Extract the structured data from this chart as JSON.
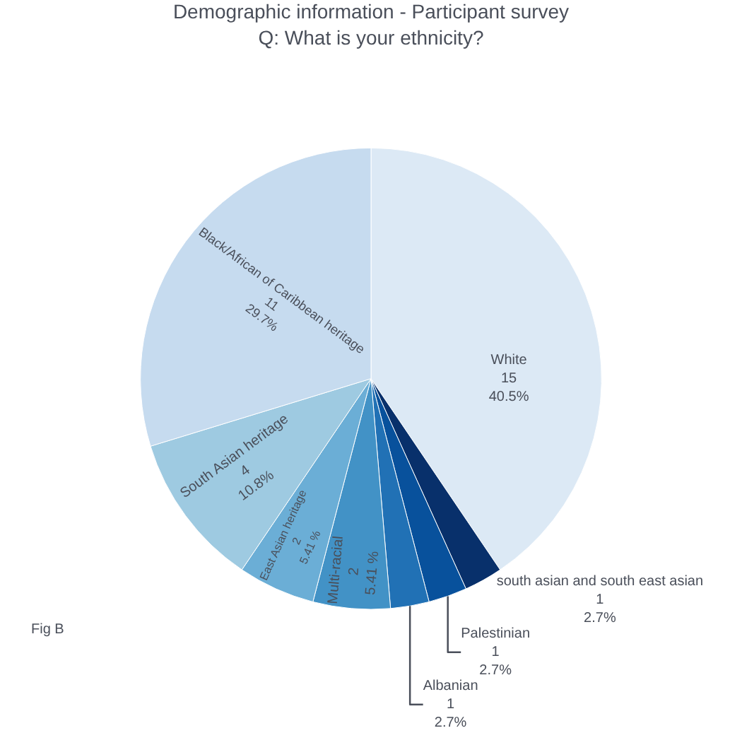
{
  "chart_data": {
    "type": "pie",
    "title": "Demographic information - Participant survey",
    "subtitle": "Q: What is your ethnicity?",
    "categories": [
      "White",
      "south asian and south east asian",
      "Palestinian",
      "Albanian",
      "Multi-racial",
      "East Asian heritage",
      "South Asian heritage",
      "Black/African of Caribbean heritage"
    ],
    "values": [
      15,
      1,
      1,
      1,
      2,
      2,
      4,
      11
    ],
    "value_labels": [
      "15\n40.5%",
      "1\n2.7%",
      "1\n2.7%",
      "1\n2.7%",
      "2\n5.41 %",
      "2\n5.41 %",
      "4\n10.8%",
      "11\n29.7%"
    ],
    "colors": [
      "#dce9f5",
      "#08306b",
      "#08519c",
      "#2171b5",
      "#4292c6",
      "#6baed6",
      "#9ecae1",
      "#c6dbef"
    ],
    "annotations": [
      "Fig B"
    ],
    "legend": false
  }
}
